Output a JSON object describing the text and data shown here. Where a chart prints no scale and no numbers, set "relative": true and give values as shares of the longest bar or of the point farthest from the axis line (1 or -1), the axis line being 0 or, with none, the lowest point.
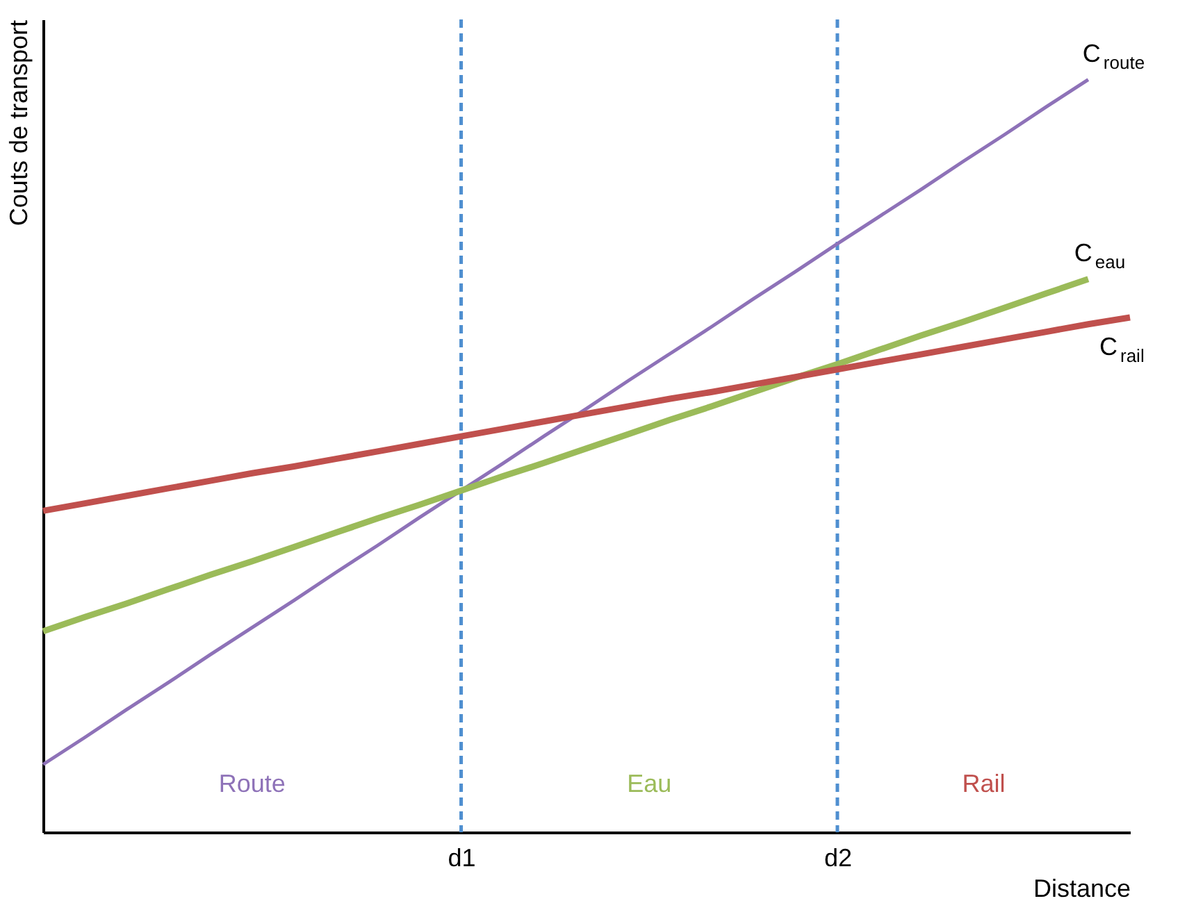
{
  "chart_data": {
    "type": "line",
    "relative": true,
    "xlabel": "Distance",
    "ylabel": "Couts de transport",
    "grid": false,
    "tick_labels": "x",
    "categories": [
      null,
      null,
      null,
      null,
      null,
      null,
      null,
      null,
      null,
      null,
      "d1",
      null,
      null,
      null,
      null,
      null,
      null,
      null,
      null,
      "d2",
      null,
      null,
      null,
      null,
      null,
      null,
      null
    ],
    "series": [
      {
        "name": "C$_{route}$",
        "color": "#8e72b8",
        "values": [
          0.09,
          0.126,
          0.163,
          0.199,
          0.236,
          0.272,
          0.308,
          0.345,
          0.381,
          0.418,
          0.454,
          0.49,
          0.527,
          0.563,
          0.6,
          0.636,
          0.672,
          0.709,
          0.745,
          0.782,
          0.818,
          0.854,
          0.891,
          0.927,
          0.964,
          1.0,
          null
        ]
      },
      {
        "name": "C$_{eau}$",
        "color": "#9bbb59",
        "values": [
          0.267,
          0.286,
          0.304,
          0.323,
          0.342,
          0.36,
          0.379,
          0.398,
          0.417,
          0.435,
          0.454,
          0.473,
          0.491,
          0.51,
          0.529,
          0.548,
          0.566,
          0.585,
          0.604,
          0.622,
          0.641,
          0.66,
          0.678,
          0.697,
          0.716,
          0.735,
          null
        ]
      },
      {
        "name": "C$_{rail}$",
        "color": "#c0504d",
        "values": [
          0.427,
          0.437,
          0.447,
          0.457,
          0.467,
          0.477,
          0.486,
          0.496,
          0.506,
          0.516,
          0.526,
          0.536,
          0.546,
          0.556,
          0.566,
          0.576,
          0.585,
          0.595,
          0.605,
          0.615,
          0.625,
          0.635,
          0.645,
          0.655,
          0.665,
          0.675,
          0.684
        ]
      }
    ],
    "ref_lines": [
      {
        "axis": "x",
        "value": "d1",
        "color": "#4f8fd0",
        "line_style": "dashed"
      },
      {
        "axis": "x",
        "value": "d2",
        "color": "#4f8fd0",
        "line_style": "dashed"
      }
    ],
    "annotations": [
      "Route",
      "Eau",
      "Rail"
    ]
  }
}
